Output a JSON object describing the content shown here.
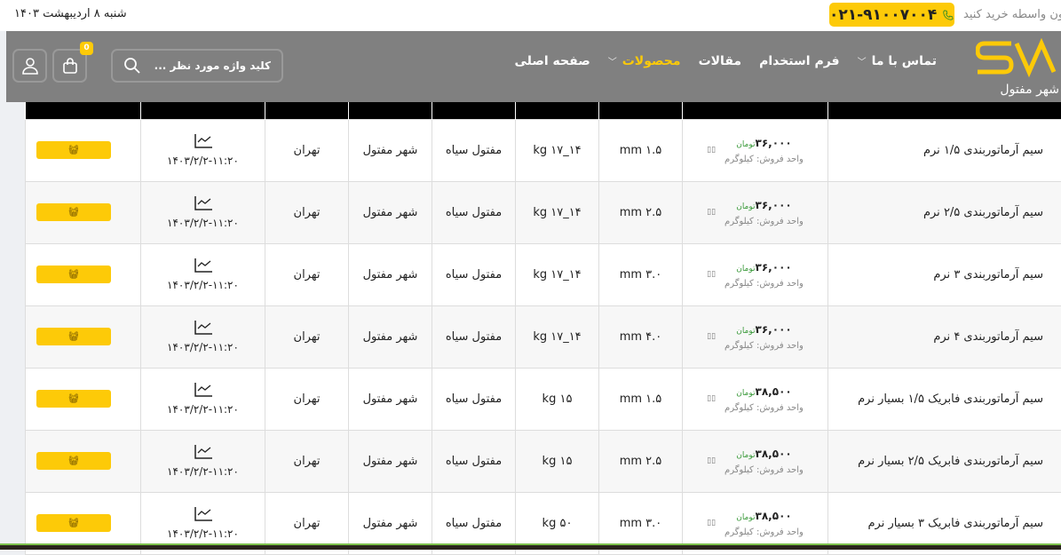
{
  "topbar": {
    "date": "شنبه ۸ اردیبهشت ۱۴۰۳",
    "phone": "۰۲۱-۹۱۰۰۷۰۰۴",
    "buy_text": "بدون واسطه خرید کنید"
  },
  "header": {
    "logo_text": "شهر مفتول",
    "nav": [
      {
        "label": "صفحه اصلی"
      },
      {
        "label": "محصولات",
        "active": true,
        "dropdown": true
      },
      {
        "label": "مقالات"
      },
      {
        "label": "فرم استخدام"
      },
      {
        "label": "تماس با ما",
        "dropdown": true
      }
    ],
    "search_placeholder": "کلید واژه مورد نظر ...",
    "cart_count": "0"
  },
  "colors": {
    "accent": "#fdca08",
    "header_bg": "#808080"
  },
  "table": {
    "rows": [
      {
        "name": "سیم آرماتوربندی ۱/۵ نرم",
        "price": "۳۶,۰۰۰",
        "currency": "تومان",
        "unit": "واحد فروش: کیلوگرم",
        "size": "۱.۵ mm",
        "weight": "۱۴_۱۷ kg",
        "type": "مفتول سیاه",
        "producer": "شهر مفتول",
        "city": "تهران",
        "date": "۱۴۰۳/۲/۲-۱۱:۲۰"
      },
      {
        "name": "سیم آرماتوربندی ۲/۵ نرم",
        "price": "۳۶,۰۰۰",
        "currency": "تومان",
        "unit": "واحد فروش: کیلوگرم",
        "size": "۲.۵ mm",
        "weight": "۱۴_۱۷ kg",
        "type": "مفتول سیاه",
        "producer": "شهر مفتول",
        "city": "تهران",
        "date": "۱۴۰۳/۲/۲-۱۱:۲۰"
      },
      {
        "name": "سیم آرماتوربندی ۳ نرم",
        "price": "۳۶,۰۰۰",
        "currency": "تومان",
        "unit": "واحد فروش: کیلوگرم",
        "size": "۳.۰ mm",
        "weight": "۱۴_۱۷ kg",
        "type": "مفتول سیاه",
        "producer": "شهر مفتول",
        "city": "تهران",
        "date": "۱۴۰۳/۲/۲-۱۱:۲۰"
      },
      {
        "name": "سیم آرماتوربندی ۴ نرم",
        "price": "۳۶,۰۰۰",
        "currency": "تومان",
        "unit": "واحد فروش: کیلوگرم",
        "size": "۴.۰ mm",
        "weight": "۱۴_۱۷ kg",
        "type": "مفتول سیاه",
        "producer": "شهر مفتول",
        "city": "تهران",
        "date": "۱۴۰۳/۲/۲-۱۱:۲۰"
      },
      {
        "name": "سیم آرماتوربندی فابریک ۱/۵ بسیار نرم",
        "price": "۳۸,۵۰۰",
        "currency": "تومان",
        "unit": "واحد فروش: کیلوگرم",
        "size": "۱.۵ mm",
        "weight": "۱۵ kg",
        "type": "مفتول سیاه",
        "producer": "شهر مفتول",
        "city": "تهران",
        "date": "۱۴۰۳/۲/۲-۱۱:۲۰"
      },
      {
        "name": "سیم آرماتوربندی فابریک ۲/۵ بسیار نرم",
        "price": "۳۸,۵۰۰",
        "currency": "تومان",
        "unit": "واحد فروش: کیلوگرم",
        "size": "۲.۵ mm",
        "weight": "۱۵ kg",
        "type": "مفتول سیاه",
        "producer": "شهر مفتول",
        "city": "تهران",
        "date": "۱۴۰۳/۲/۲-۱۱:۲۰"
      },
      {
        "name": "سیم آرماتوربندی فابریک ۳ بسیار نرم",
        "price": "۳۸,۵۰۰",
        "currency": "تومان",
        "unit": "واحد فروش: کیلوگرم",
        "size": "۳.۰ mm",
        "weight": "۵۰ kg",
        "type": "مفتول سیاه",
        "producer": "شهر مفتول",
        "city": "تهران",
        "date": "۱۴۰۳/۲/۲-۱۱:۲۰"
      }
    ]
  }
}
